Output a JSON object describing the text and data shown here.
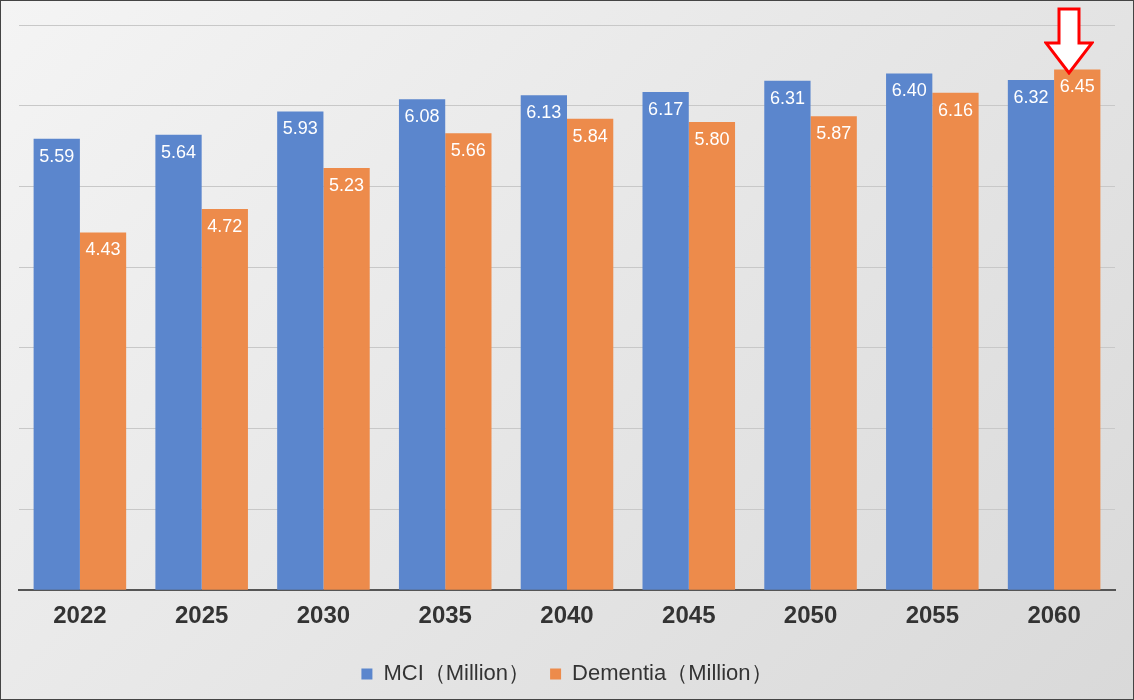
{
  "chart_data": {
    "type": "bar",
    "categories": [
      "2022",
      "2025",
      "2030",
      "2035",
      "2040",
      "2045",
      "2050",
      "2055",
      "2060"
    ],
    "series": [
      {
        "name": "MCI（Million）",
        "color": "#5b86cd",
        "values": [
          5.59,
          5.64,
          5.93,
          6.08,
          6.13,
          6.17,
          6.31,
          6.4,
          6.32
        ],
        "value_labels": [
          "5.59",
          "5.64",
          "5.93",
          "6.08",
          "6.13",
          "6.17",
          "6.31",
          "6.40",
          "6.32"
        ]
      },
      {
        "name": "Dementia（Million）",
        "color": "#ed8b4b",
        "values": [
          4.43,
          4.72,
          5.23,
          5.66,
          5.84,
          5.8,
          5.87,
          6.16,
          6.45
        ],
        "value_labels": [
          "4.43",
          "4.72",
          "5.23",
          "5.66",
          "5.84",
          "5.80",
          "5.87",
          "6.16",
          "6.45"
        ]
      }
    ],
    "ylim": [
      0,
      7
    ],
    "yticks": [
      {
        "value": 0,
        "label": null
      },
      {
        "value": 1,
        "label": null
      },
      {
        "value": 2,
        "label": null
      },
      {
        "value": 3,
        "label": null
      },
      {
        "value": 4,
        "label": null
      },
      {
        "value": 5,
        "label": null
      },
      {
        "value": 6,
        "label": null
      },
      {
        "value": 7,
        "label": null
      }
    ],
    "tick_labels": "x",
    "grid": "y",
    "legend": "bottom"
  }
}
